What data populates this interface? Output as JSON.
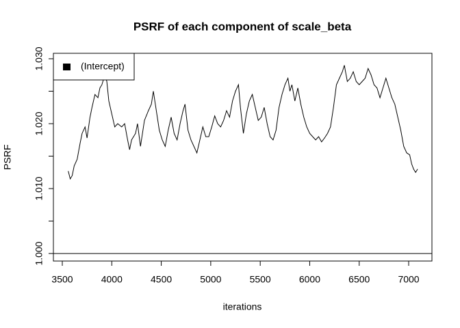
{
  "chart_data": {
    "type": "line",
    "title": "PSRF of each component of scale_beta",
    "x_label": "iterations",
    "y_label": "PSRF",
    "x": [
      3560,
      3580,
      3600,
      3620,
      3650,
      3680,
      3700,
      3730,
      3750,
      3780,
      3800,
      3830,
      3860,
      3880,
      3900,
      3930,
      3950,
      3970,
      4000,
      4030,
      4060,
      4100,
      4130,
      4160,
      4180,
      4200,
      4240,
      4260,
      4290,
      4330,
      4370,
      4400,
      4420,
      4450,
      4480,
      4510,
      4540,
      4570,
      4600,
      4630,
      4660,
      4690,
      4720,
      4740,
      4770,
      4800,
      4830,
      4860,
      4890,
      4920,
      4950,
      4980,
      5010,
      5040,
      5070,
      5100,
      5130,
      5160,
      5190,
      5220,
      5250,
      5280,
      5300,
      5330,
      5360,
      5390,
      5420,
      5450,
      5480,
      5510,
      5540,
      5570,
      5600,
      5630,
      5660,
      5690,
      5720,
      5750,
      5780,
      5800,
      5820,
      5850,
      5880,
      5910,
      5940,
      5970,
      6000,
      6030,
      6060,
      6090,
      6120,
      6150,
      6180,
      6210,
      6240,
      6270,
      6300,
      6330,
      6350,
      6380,
      6410,
      6440,
      6470,
      6500,
      6530,
      6560,
      6590,
      6620,
      6650,
      6680,
      6710,
      6740,
      6770,
      6800,
      6830,
      6860,
      6890,
      6920,
      6950,
      6980,
      7010,
      7030,
      7050,
      7070,
      7090
    ],
    "series": [
      {
        "name": "(Intercept)",
        "color": "#000000",
        "values": [
          1.0127,
          1.0115,
          1.012,
          1.0135,
          1.0145,
          1.017,
          1.0185,
          1.0195,
          1.0178,
          1.021,
          1.0225,
          1.0245,
          1.024,
          1.0255,
          1.026,
          1.0275,
          1.0265,
          1.0235,
          1.0215,
          1.0195,
          1.02,
          1.0195,
          1.02,
          1.0175,
          1.016,
          1.0175,
          1.0185,
          1.02,
          1.0165,
          1.0205,
          1.022,
          1.023,
          1.025,
          1.022,
          1.019,
          1.0175,
          1.0165,
          1.019,
          1.021,
          1.0185,
          1.0175,
          1.02,
          1.022,
          1.023,
          1.019,
          1.0175,
          1.0165,
          1.0155,
          1.0175,
          1.0195,
          1.018,
          1.018,
          1.0195,
          1.0212,
          1.02,
          1.0195,
          1.0205,
          1.022,
          1.021,
          1.0235,
          1.025,
          1.026,
          1.0225,
          1.0185,
          1.0215,
          1.0235,
          1.0245,
          1.0225,
          1.0205,
          1.021,
          1.0225,
          1.02,
          1.018,
          1.0175,
          1.019,
          1.0225,
          1.0245,
          1.026,
          1.027,
          1.025,
          1.026,
          1.0235,
          1.0255,
          1.023,
          1.021,
          1.0195,
          1.0185,
          1.018,
          1.0175,
          1.018,
          1.0172,
          1.0178,
          1.0185,
          1.0195,
          1.0225,
          1.026,
          1.027,
          1.028,
          1.029,
          1.0265,
          1.027,
          1.028,
          1.0265,
          1.026,
          1.0265,
          1.027,
          1.0285,
          1.0275,
          1.026,
          1.0255,
          1.024,
          1.0255,
          1.027,
          1.0255,
          1.024,
          1.023,
          1.021,
          1.019,
          1.0165,
          1.0155,
          1.0152,
          1.0138,
          1.013,
          1.0125,
          1.013
        ]
      }
    ],
    "reference_line": 1,
    "xlim": [
      3410,
      7235
    ],
    "ylim": [
      0.99884,
      1.03084
    ],
    "xticks": [
      3500,
      4000,
      4500,
      5000,
      5500,
      6000,
      6500,
      7000
    ],
    "yticks": [
      {
        "value": 1,
        "label": "1.000"
      },
      {
        "value": 1.005,
        "label": null
      },
      {
        "value": 1.01,
        "label": "1.010"
      },
      {
        "value": 1.015,
        "label": null
      },
      {
        "value": 1.02,
        "label": "1.020"
      },
      {
        "value": 1.025,
        "label": null
      },
      {
        "value": 1.03,
        "label": "1.030"
      }
    ],
    "legend": "top-left",
    "grid": false
  }
}
